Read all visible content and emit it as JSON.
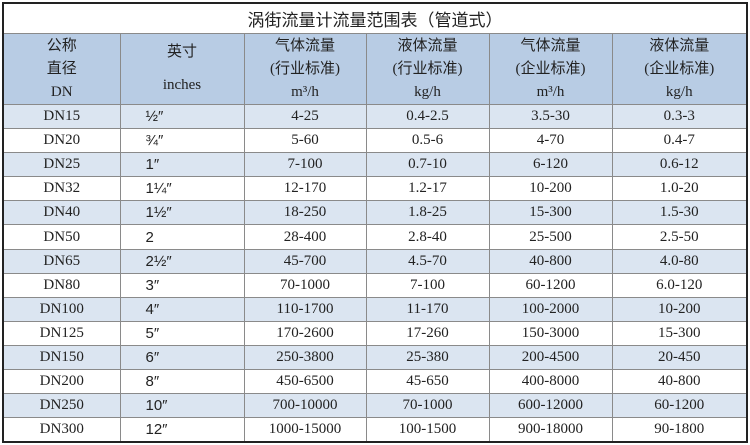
{
  "title": "涡街流量计流量范围表（管道式）",
  "headers": [
    {
      "lines": [
        "公称",
        "直径",
        "DN"
      ]
    },
    {
      "lines": [
        "英寸",
        "inches"
      ]
    },
    {
      "lines": [
        "气体流量",
        "(行业标准)",
        "m³/h"
      ]
    },
    {
      "lines": [
        "液体流量",
        "(行业标准)",
        "kg/h"
      ]
    },
    {
      "lines": [
        "气体流量",
        "(企业标准)",
        "m³/h"
      ]
    },
    {
      "lines": [
        "液体流量",
        "(企业标准)",
        "kg/h"
      ]
    }
  ],
  "rows": [
    [
      "DN15",
      "½″",
      "4-25",
      "0.4-2.5",
      "3.5-30",
      "0.3-3"
    ],
    [
      "DN20",
      "¾″",
      "5-60",
      "0.5-6",
      "4-70",
      "0.4-7"
    ],
    [
      "DN25",
      "1″",
      "7-100",
      "0.7-10",
      "6-120",
      "0.6-12"
    ],
    [
      "DN32",
      "1¼″",
      "12-170",
      "1.2-17",
      "10-200",
      "1.0-20"
    ],
    [
      "DN40",
      "1½″",
      "18-250",
      "1.8-25",
      "15-300",
      "1.5-30"
    ],
    [
      "DN50",
      "2",
      "28-400",
      "2.8-40",
      "25-500",
      "2.5-50"
    ],
    [
      "DN65",
      "2½″",
      "45-700",
      "4.5-70",
      "40-800",
      "4.0-80"
    ],
    [
      "DN80",
      "3″",
      "70-1000",
      "7-100",
      "60-1200",
      "6.0-120"
    ],
    [
      "DN100",
      "4″",
      "110-1700",
      "11-170",
      "100-2000",
      "10-200"
    ],
    [
      "DN125",
      "5″",
      "170-2600",
      "17-260",
      "150-3000",
      "15-300"
    ],
    [
      "DN150",
      "6″",
      "250-3800",
      "25-380",
      "200-4500",
      "20-450"
    ],
    [
      "DN200",
      "8″",
      "450-6500",
      "45-650",
      "400-8000",
      "40-800"
    ],
    [
      "DN250",
      "10″",
      "700-10000",
      "70-1000",
      "600-12000",
      "60-1200"
    ],
    [
      "DN300",
      "12″",
      "1000-15000",
      "100-1500",
      "900-18000",
      "90-1800"
    ]
  ],
  "colors": {
    "header_bg": "#b8cce4",
    "stripe_bg": "#dbe5f1",
    "border": "#8a8a8a"
  }
}
